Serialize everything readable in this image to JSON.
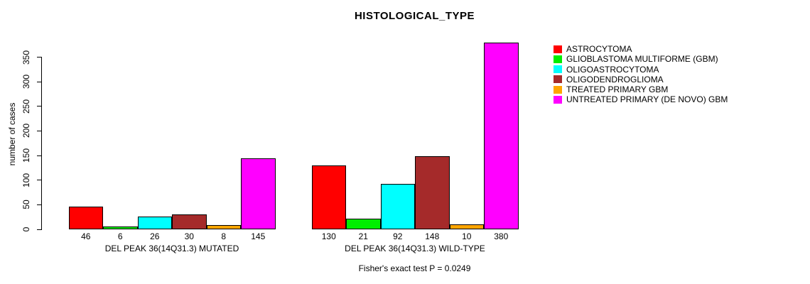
{
  "chart_data": {
    "type": "bar",
    "title": "HISTOLOGICAL_TYPE",
    "ylabel": "number of cases",
    "xlabel": "",
    "footer": "Fisher's exact test P = 0.0249",
    "ylim": [
      0,
      380
    ],
    "yticks": [
      0,
      50,
      100,
      150,
      200,
      250,
      300,
      350
    ],
    "grid": false,
    "legend_position": "top-right",
    "groups": [
      "DEL PEAK 36(14Q31.3) MUTATED",
      "DEL PEAK 36(14Q31.3) WILD-TYPE"
    ],
    "series": [
      {
        "name": "ASTROCYTOMA",
        "color": "#FF0000",
        "values": [
          46,
          130
        ]
      },
      {
        "name": "GLIOBLASTOMA MULTIFORME (GBM)",
        "color": "#00EE00",
        "values": [
          6,
          21
        ]
      },
      {
        "name": "OLIGOASTROCYTOMA",
        "color": "#00FFFF",
        "values": [
          26,
          92
        ]
      },
      {
        "name": "OLIGODENDROGLIOMA",
        "color": "#A52A2A",
        "values": [
          30,
          148
        ]
      },
      {
        "name": "TREATED PRIMARY GBM",
        "color": "#FFA500",
        "values": [
          8,
          10
        ]
      },
      {
        "name": "UNTREATED PRIMARY (DE NOVO) GBM",
        "color": "#FF00FF",
        "values": [
          145,
          380
        ]
      }
    ],
    "bar_value_labels_shown": true
  }
}
